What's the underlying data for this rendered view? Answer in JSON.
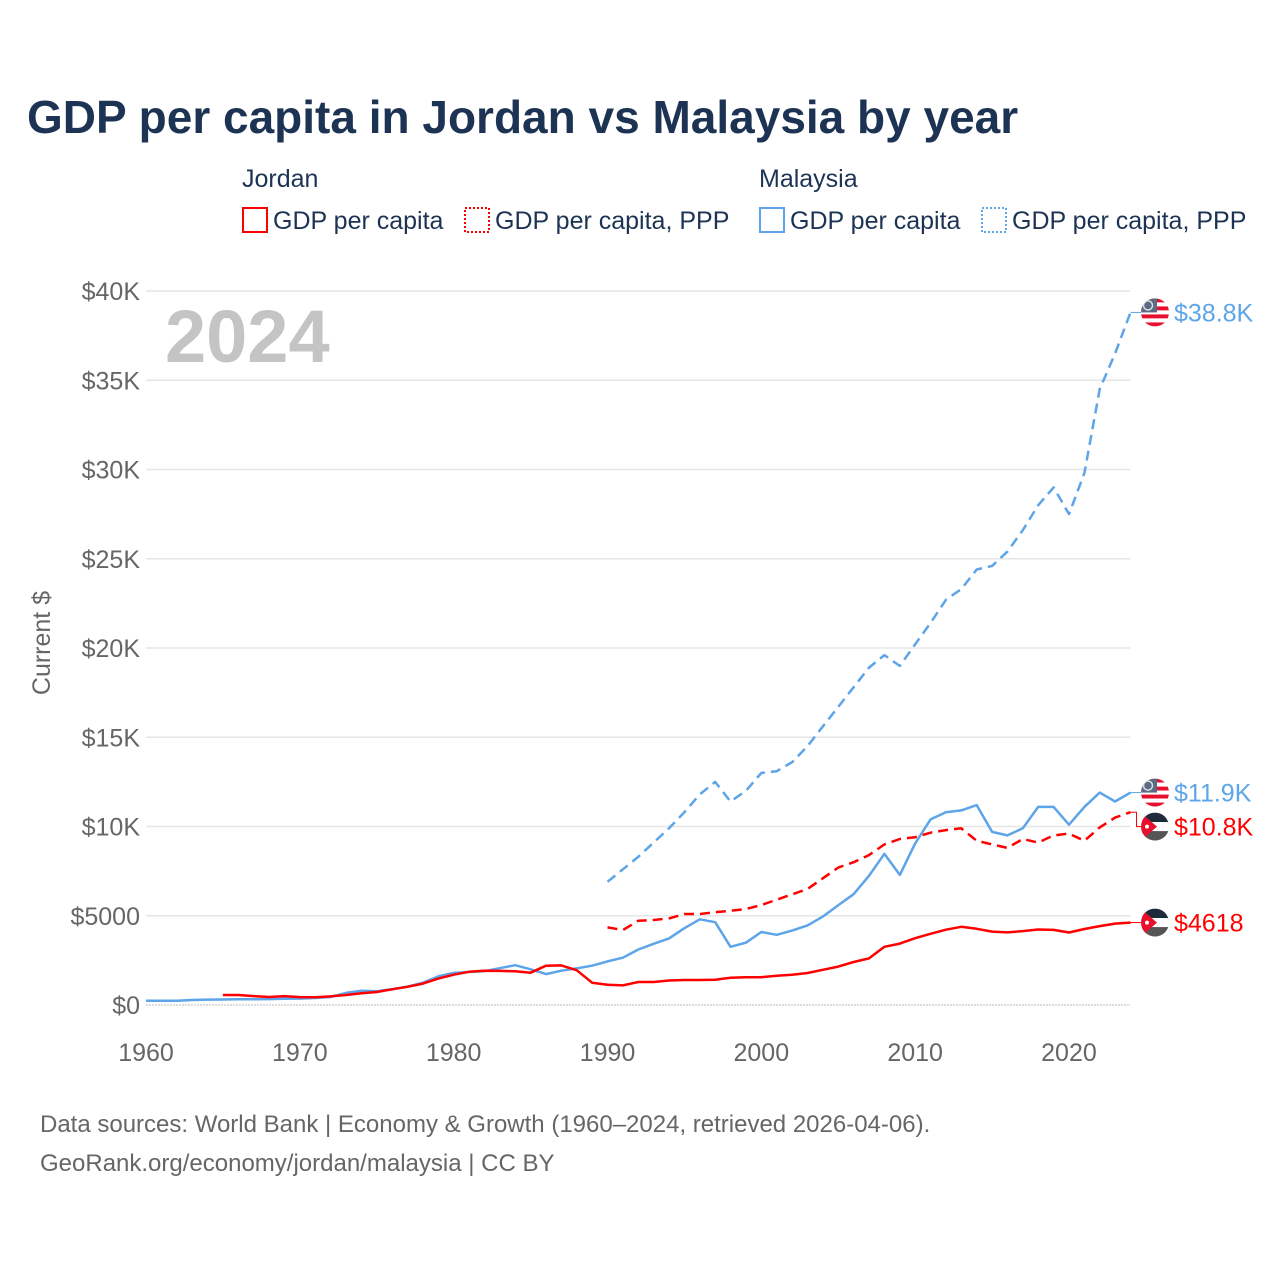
{
  "chart_data": {
    "type": "line",
    "title": "GDP per capita in Jordan vs Malaysia by year",
    "year_overlay": "2024",
    "ylabel": "Current $",
    "xlabel": "",
    "xlim": [
      1960,
      2024
    ],
    "ylim": [
      0,
      40000
    ],
    "grid": true,
    "x_ticks": [
      1960,
      1970,
      1980,
      1990,
      2000,
      2010,
      2020
    ],
    "x_tick_labels": [
      "1960",
      "1970",
      "1980",
      "1990",
      "2000",
      "2010",
      "2020"
    ],
    "y_ticks": [
      0,
      5000,
      10000,
      15000,
      20000,
      25000,
      30000,
      35000,
      40000
    ],
    "y_tick_labels": [
      "$0",
      "$5000",
      "$10K",
      "$15K",
      "$20K",
      "$25K",
      "$30K",
      "$35K",
      "$40K"
    ],
    "legend": {
      "placement": "top",
      "groups": [
        {
          "title": "Jordan",
          "items": [
            "GDP per capita",
            "GDP per capita, PPP"
          ]
        },
        {
          "title": "Malaysia",
          "items": [
            "GDP per capita",
            "GDP per capita, PPP"
          ]
        }
      ]
    },
    "series": [
      {
        "name": "Malaysia GDP per capita, PPP",
        "country": "Malaysia",
        "color": "#5da5e8",
        "dashed": true,
        "end_label": "$38.8K",
        "start": 1990,
        "values": [
          6900,
          7600,
          8300,
          9100,
          9900,
          10800,
          11800,
          12500,
          11400,
          12000,
          13000,
          13100,
          13600,
          14500,
          15600,
          16700,
          17800,
          18900,
          19600,
          19000,
          20200,
          21400,
          22700,
          23300,
          24400,
          24600,
          25400,
          26600,
          28000,
          29000,
          27500,
          29800,
          34500,
          36500,
          38800
        ]
      },
      {
        "name": "Malaysia GDP per capita",
        "country": "Malaysia",
        "color": "#5da5e8",
        "dashed": false,
        "end_label": "$11.9K",
        "start": 1960,
        "values": [
          235,
          235,
          240,
          280,
          300,
          310,
          320,
          320,
          330,
          350,
          360,
          390,
          450,
          680,
          800,
          770,
          890,
          1030,
          1250,
          1600,
          1800,
          1850,
          1900,
          2060,
          2230,
          2000,
          1730,
          1920,
          2050,
          2200,
          2440,
          2650,
          3110,
          3430,
          3730,
          4300,
          4800,
          4640,
          3260,
          3490,
          4090,
          3930,
          4170,
          4460,
          4950,
          5590,
          6210,
          7240,
          8470,
          7290,
          9040,
          10400,
          10800,
          10900,
          11200,
          9700,
          9500,
          9900,
          11100,
          11100,
          10100,
          11100,
          11900,
          11400,
          11900
        ]
      },
      {
        "name": "Jordan GDP per capita, PPP",
        "country": "Jordan",
        "color": "#ff0000",
        "dashed": true,
        "end_label": "$10.8K",
        "start": 1990,
        "values": [
          4350,
          4200,
          4720,
          4760,
          4850,
          5100,
          5100,
          5200,
          5280,
          5380,
          5600,
          5900,
          6200,
          6500,
          7100,
          7700,
          8000,
          8400,
          9000,
          9300,
          9400,
          9650,
          9800,
          9900,
          9200,
          9000,
          8800,
          9300,
          9100,
          9500,
          9600,
          9200,
          9950,
          10500,
          10800
        ]
      },
      {
        "name": "Jordan GDP per capita",
        "country": "Jordan",
        "color": "#ff0000",
        "dashed": false,
        "end_label": "$4618",
        "start": 1965,
        "values": [
          560,
          560,
          500,
          450,
          500,
          440,
          430,
          480,
          560,
          660,
          730,
          880,
          1020,
          1200,
          1480,
          1700,
          1860,
          1920,
          1910,
          1890,
          1810,
          2200,
          2220,
          1950,
          1250,
          1140,
          1100,
          1290,
          1290,
          1370,
          1400,
          1400,
          1420,
          1530,
          1550,
          1560,
          1640,
          1700,
          1790,
          1970,
          2150,
          2410,
          2610,
          3260,
          3440,
          3740,
          3990,
          4220,
          4380,
          4270,
          4110,
          4070,
          4140,
          4230,
          4210,
          4060,
          4260,
          4420,
          4560,
          4618
        ]
      }
    ]
  },
  "footer": {
    "line1": "Data sources: World Bank | Economy & Growth (1960–2024, retrieved 2026-04-06).",
    "line2": "GeoRank.org/economy/jordan/malaysia | CC BY"
  },
  "colors": {
    "title": "#1d3354",
    "jordan": "#ff0000",
    "malaysia": "#5da5e8",
    "axis_text": "#666666",
    "year": "#c4c4c4"
  }
}
